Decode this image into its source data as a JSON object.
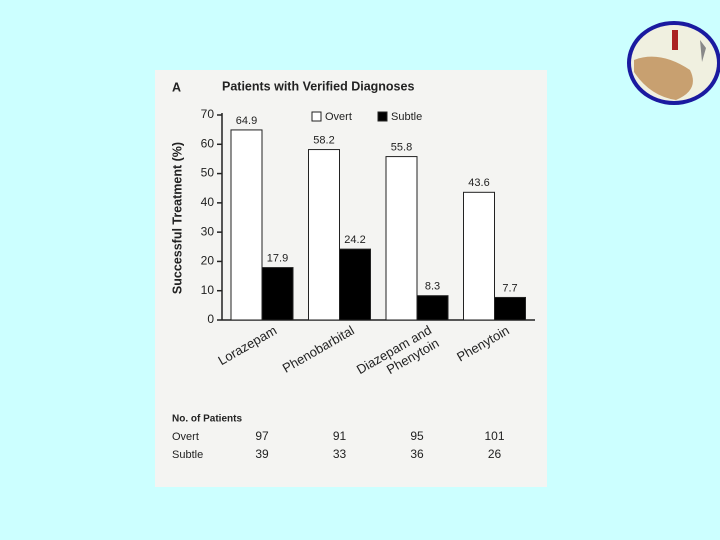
{
  "chart_data": {
    "type": "bar",
    "panel_label": "A",
    "title": "Patients with Verified Diagnoses",
    "y_label": "Successful Treatment (%)",
    "categories": [
      "Lorazepam",
      "Phenobarbital",
      "Diazepam and Phenytoin",
      "Phenytoin"
    ],
    "series": [
      {
        "name": "Overt",
        "color": "#ffffff",
        "values": [
          64.9,
          58.2,
          55.8,
          43.6
        ]
      },
      {
        "name": "Subtle",
        "color": "#000000",
        "values": [
          17.9,
          24.2,
          8.3,
          7.7
        ]
      }
    ],
    "ylim": [
      0,
      70
    ],
    "yticks": [
      0,
      10,
      20,
      30,
      40,
      50,
      60,
      70
    ],
    "grid": false,
    "patient_counts": {
      "title": "No. of Patients",
      "rows": [
        {
          "label": "Overt",
          "values": [
            97,
            91,
            95,
            101
          ]
        },
        {
          "label": "Subtle",
          "values": [
            39,
            33,
            36,
            26
          ]
        }
      ]
    }
  }
}
